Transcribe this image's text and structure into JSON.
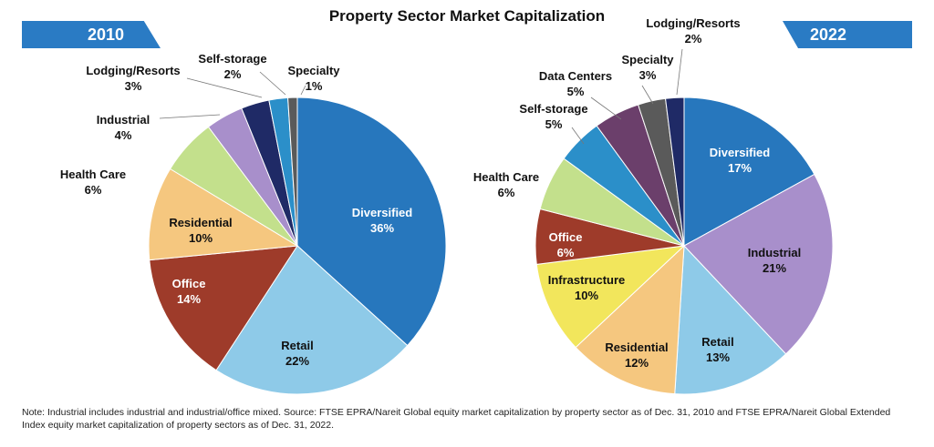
{
  "title": "Property Sector Market Capitalization",
  "note": "Note: Industrial includes industrial and industrial/office mixed. Source: FTSE EPRA/Nareit Global equity market capitalization by property sector as of Dec. 31, 2010 and FTSE EPRA/Nareit Global Extended Index equity market capitalization of property sectors as of Dec. 31, 2022.",
  "chart_data": [
    {
      "type": "pie",
      "title": "2010",
      "slices": [
        {
          "label": "Diversified",
          "value": 36,
          "value_label": "36%",
          "color": "#2777bd"
        },
        {
          "label": "Retail",
          "value": 22,
          "value_label": "22%",
          "color": "#8ecae8"
        },
        {
          "label": "Office",
          "value": 14,
          "value_label": "14%",
          "color": "#9e3b2a"
        },
        {
          "label": "Residential",
          "value": 10,
          "value_label": "10%",
          "color": "#f5c77f"
        },
        {
          "label": "Health Care",
          "value": 6,
          "value_label": "6%",
          "color": "#c3e08c"
        },
        {
          "label": "Industrial",
          "value": 4,
          "value_label": "4%",
          "color": "#a88fcb"
        },
        {
          "label": "Lodging/Resorts",
          "value": 3,
          "value_label": "3%",
          "color": "#1f2a66"
        },
        {
          "label": "Self-storage",
          "value": 2,
          "value_label": "2%",
          "color": "#2b8fc9"
        },
        {
          "label": "Specialty",
          "value": 1,
          "value_label": "1%",
          "color": "#5a5a5a"
        }
      ]
    },
    {
      "type": "pie",
      "title": "2022",
      "slices": [
        {
          "label": "Diversified",
          "value": 17,
          "value_label": "17%",
          "color": "#2777bd"
        },
        {
          "label": "Industrial",
          "value": 21,
          "value_label": "21%",
          "color": "#a88fcb"
        },
        {
          "label": "Retail",
          "value": 13,
          "value_label": "13%",
          "color": "#8ecae8"
        },
        {
          "label": "Residential",
          "value": 12,
          "value_label": "12%",
          "color": "#f5c77f"
        },
        {
          "label": "Infrastructure",
          "value": 10,
          "value_label": "10%",
          "color": "#f2e65c"
        },
        {
          "label": "Office",
          "value": 6,
          "value_label": "6%",
          "color": "#9e3b2a"
        },
        {
          "label": "Health Care",
          "value": 6,
          "value_label": "6%",
          "color": "#c3e08c"
        },
        {
          "label": "Self-storage",
          "value": 5,
          "value_label": "5%",
          "color": "#2b8fc9"
        },
        {
          "label": "Data Centers",
          "value": 5,
          "value_label": "5%",
          "color": "#6b3f6b"
        },
        {
          "label": "Specialty",
          "value": 3,
          "value_label": "3%",
          "color": "#5a5a5a"
        },
        {
          "label": "Lodging/Resorts",
          "value": 2,
          "value_label": "2%",
          "color": "#1f2a66"
        }
      ]
    }
  ]
}
